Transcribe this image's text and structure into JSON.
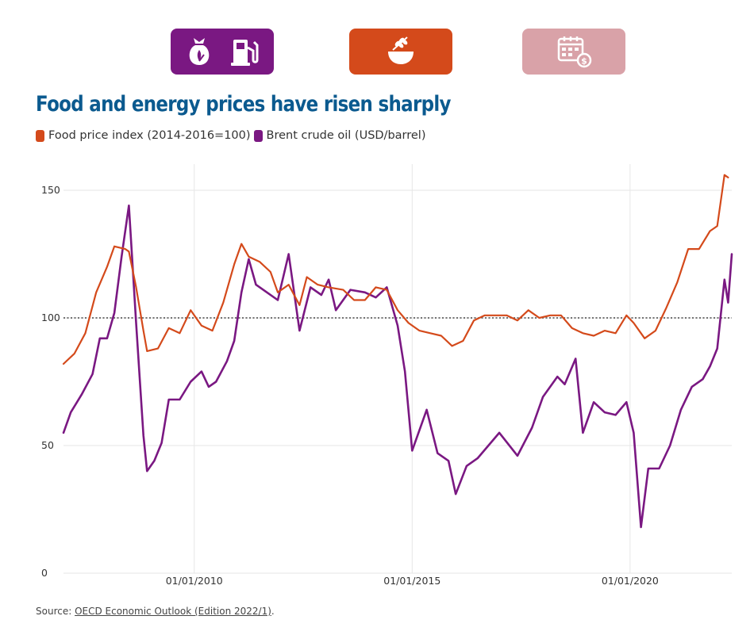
{
  "header": {
    "tabs": [
      {
        "name": "energy",
        "icons": [
          "grain-sack-icon",
          "fuel-pump-icon"
        ],
        "color": "#7a1882",
        "active": false
      },
      {
        "name": "food",
        "icons": [
          "wheat-bowl-icon"
        ],
        "color": "#d44a1b",
        "active": true
      },
      {
        "name": "calendar",
        "icons": [
          "calendar-dollar-icon"
        ],
        "color": "#d9a2a8",
        "active": false
      }
    ]
  },
  "source": {
    "prefix": "Source: ",
    "link_text": "OECD Economic Outlook (Edition 2022/1)",
    "suffix": "."
  },
  "chart_data": {
    "type": "line",
    "title": "Food and energy prices have risen sharply",
    "legend_position": "top-left",
    "grid": true,
    "xlim": [
      "2007-01-01",
      "2022-05-01"
    ],
    "ylim": [
      0,
      160
    ],
    "x_ticks": [
      "01/01/2010",
      "01/01/2015",
      "01/01/2020"
    ],
    "y_ticks": [
      0,
      50,
      100,
      150
    ],
    "reference_line": {
      "y": 100,
      "style": "dotted"
    },
    "series": [
      {
        "name": "Food price index (2014-2016=100)",
        "color": "#d44a1b",
        "points": [
          [
            "2007-01",
            82
          ],
          [
            "2007-04",
            86
          ],
          [
            "2007-07",
            94
          ],
          [
            "2007-10",
            110
          ],
          [
            "2008-01",
            120
          ],
          [
            "2008-03",
            128
          ],
          [
            "2008-06",
            127
          ],
          [
            "2008-07",
            126
          ],
          [
            "2008-09",
            112
          ],
          [
            "2008-11",
            95
          ],
          [
            "2008-12",
            87
          ],
          [
            "2009-03",
            88
          ],
          [
            "2009-06",
            96
          ],
          [
            "2009-09",
            94
          ],
          [
            "2009-12",
            103
          ],
          [
            "2010-03",
            97
          ],
          [
            "2010-06",
            95
          ],
          [
            "2010-09",
            106
          ],
          [
            "2010-12",
            121
          ],
          [
            "2011-02",
            129
          ],
          [
            "2011-04",
            124
          ],
          [
            "2011-07",
            122
          ],
          [
            "2011-10",
            118
          ],
          [
            "2011-12",
            110
          ],
          [
            "2012-03",
            113
          ],
          [
            "2012-06",
            105
          ],
          [
            "2012-08",
            116
          ],
          [
            "2012-11",
            113
          ],
          [
            "2013-02",
            112
          ],
          [
            "2013-06",
            111
          ],
          [
            "2013-09",
            107
          ],
          [
            "2013-12",
            107
          ],
          [
            "2014-03",
            112
          ],
          [
            "2014-06",
            111
          ],
          [
            "2014-09",
            103
          ],
          [
            "2014-12",
            98
          ],
          [
            "2015-03",
            95
          ],
          [
            "2015-06",
            94
          ],
          [
            "2015-09",
            93
          ],
          [
            "2015-12",
            89
          ],
          [
            "2016-03",
            91
          ],
          [
            "2016-06",
            99
          ],
          [
            "2016-09",
            101
          ],
          [
            "2016-12",
            101
          ],
          [
            "2017-03",
            101
          ],
          [
            "2017-06",
            99
          ],
          [
            "2017-09",
            103
          ],
          [
            "2017-12",
            100
          ],
          [
            "2018-03",
            101
          ],
          [
            "2018-06",
            101
          ],
          [
            "2018-09",
            96
          ],
          [
            "2018-12",
            94
          ],
          [
            "2019-03",
            93
          ],
          [
            "2019-06",
            95
          ],
          [
            "2019-09",
            94
          ],
          [
            "2019-12",
            101
          ],
          [
            "2020-02",
            98
          ],
          [
            "2020-05",
            92
          ],
          [
            "2020-08",
            95
          ],
          [
            "2020-11",
            104
          ],
          [
            "2021-02",
            114
          ],
          [
            "2021-05",
            127
          ],
          [
            "2021-08",
            127
          ],
          [
            "2021-11",
            134
          ],
          [
            "2022-01",
            136
          ],
          [
            "2022-03",
            156
          ],
          [
            "2022-04",
            155
          ]
        ]
      },
      {
        "name": "Brent crude oil (USD/barrel)",
        "color": "#7a1882",
        "points": [
          [
            "2007-01",
            55
          ],
          [
            "2007-03",
            63
          ],
          [
            "2007-06",
            70
          ],
          [
            "2007-09",
            78
          ],
          [
            "2007-11",
            92
          ],
          [
            "2008-01",
            92
          ],
          [
            "2008-03",
            102
          ],
          [
            "2008-05",
            124
          ],
          [
            "2008-07",
            144
          ],
          [
            "2008-09",
            98
          ],
          [
            "2008-11",
            54
          ],
          [
            "2008-12",
            40
          ],
          [
            "2009-02",
            44
          ],
          [
            "2009-04",
            51
          ],
          [
            "2009-06",
            68
          ],
          [
            "2009-09",
            68
          ],
          [
            "2009-12",
            75
          ],
          [
            "2010-03",
            79
          ],
          [
            "2010-05",
            73
          ],
          [
            "2010-07",
            75
          ],
          [
            "2010-10",
            83
          ],
          [
            "2010-12",
            91
          ],
          [
            "2011-02",
            110
          ],
          [
            "2011-04",
            123
          ],
          [
            "2011-06",
            113
          ],
          [
            "2011-09",
            110
          ],
          [
            "2011-12",
            107
          ],
          [
            "2012-03",
            125
          ],
          [
            "2012-06",
            95
          ],
          [
            "2012-09",
            112
          ],
          [
            "2012-12",
            109
          ],
          [
            "2013-02",
            115
          ],
          [
            "2013-04",
            103
          ],
          [
            "2013-08",
            111
          ],
          [
            "2013-12",
            110
          ],
          [
            "2014-03",
            108
          ],
          [
            "2014-06",
            112
          ],
          [
            "2014-09",
            97
          ],
          [
            "2014-11",
            79
          ],
          [
            "2015-01",
            48
          ],
          [
            "2015-05",
            64
          ],
          [
            "2015-08",
            47
          ],
          [
            "2015-11",
            44
          ],
          [
            "2016-01",
            31
          ],
          [
            "2016-04",
            42
          ],
          [
            "2016-07",
            45
          ],
          [
            "2016-10",
            50
          ],
          [
            "2017-01",
            55
          ],
          [
            "2017-06",
            46
          ],
          [
            "2017-10",
            57
          ],
          [
            "2018-01",
            69
          ],
          [
            "2018-05",
            77
          ],
          [
            "2018-07",
            74
          ],
          [
            "2018-10",
            84
          ],
          [
            "2018-12",
            55
          ],
          [
            "2019-03",
            67
          ],
          [
            "2019-06",
            63
          ],
          [
            "2019-09",
            62
          ],
          [
            "2019-12",
            67
          ],
          [
            "2020-02",
            55
          ],
          [
            "2020-04",
            18
          ],
          [
            "2020-06",
            41
          ],
          [
            "2020-09",
            41
          ],
          [
            "2020-12",
            50
          ],
          [
            "2021-03",
            64
          ],
          [
            "2021-06",
            73
          ],
          [
            "2021-09",
            76
          ],
          [
            "2021-11",
            81
          ],
          [
            "2022-01",
            88
          ],
          [
            "2022-03",
            115
          ],
          [
            "2022-04",
            106
          ],
          [
            "2022-05",
            125
          ]
        ]
      }
    ]
  }
}
